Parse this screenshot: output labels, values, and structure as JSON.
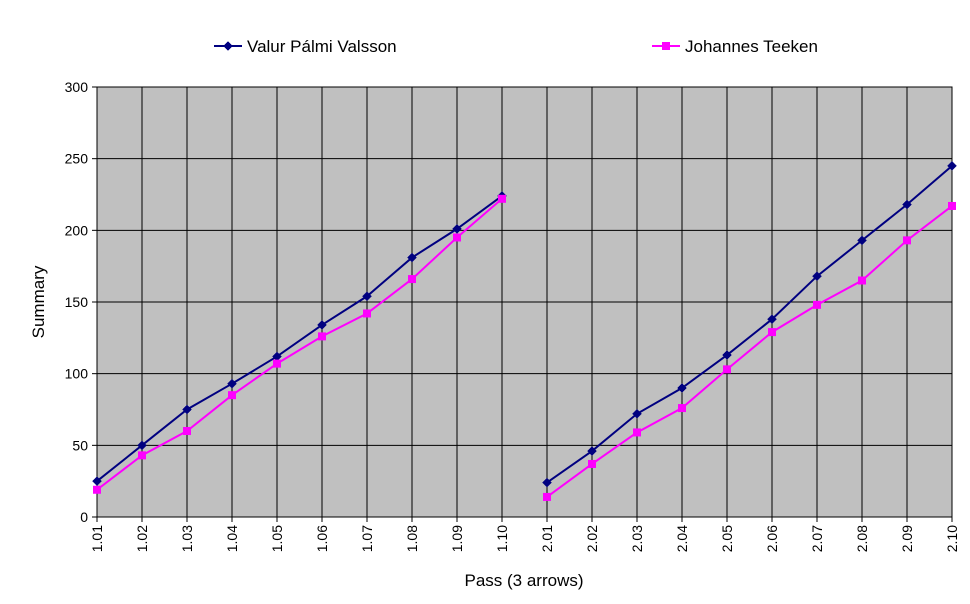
{
  "chart_data": {
    "type": "line",
    "title": "",
    "xlabel": "Pass (3 arrows)",
    "ylabel": "Summary",
    "ylim": [
      0,
      300
    ],
    "yticks": [
      0,
      50,
      100,
      150,
      200,
      250,
      300
    ],
    "grid": true,
    "legend_position": "top",
    "plot_background": "#c0c0c0",
    "categories": [
      "1.01",
      "1.02",
      "1.03",
      "1.04",
      "1.05",
      "1.06",
      "1.07",
      "1.08",
      "1.09",
      "1.10",
      "2.01",
      "2.02",
      "2.03",
      "2.04",
      "2.05",
      "2.06",
      "2.07",
      "2.08",
      "2.09",
      "2.10"
    ],
    "series": [
      {
        "name": "Valur Pálmi Valsson",
        "color": "#000080",
        "marker": "diamond",
        "values": [
          25,
          50,
          75,
          93,
          112,
          134,
          154,
          181,
          201,
          224,
          24,
          46,
          72,
          90,
          113,
          138,
          168,
          193,
          218,
          245
        ]
      },
      {
        "name": "Johannes Teeken",
        "color": "#ff00ff",
        "marker": "square",
        "values": [
          19,
          43,
          60,
          85,
          107,
          126,
          142,
          166,
          195,
          222,
          14,
          37,
          59,
          76,
          103,
          129,
          148,
          165,
          193,
          217
        ]
      }
    ]
  }
}
